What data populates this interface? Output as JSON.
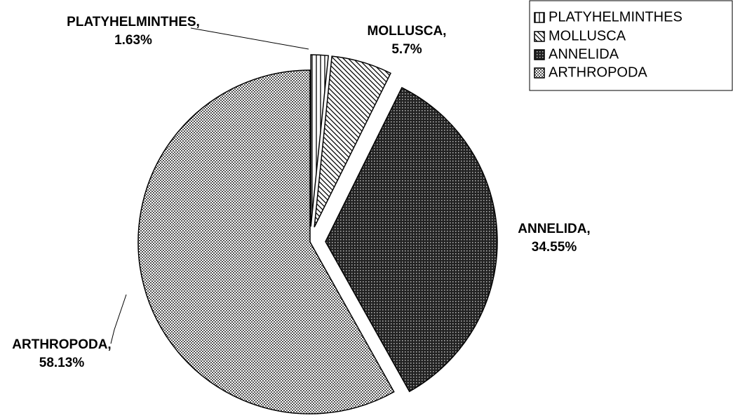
{
  "chart_data": {
    "type": "pie",
    "categories": [
      "PLATYHELMINTHES",
      "MOLLUSCA",
      "ANNELIDA",
      "ARTHROPODA"
    ],
    "values": [
      1.63,
      5.7,
      34.55,
      58.13
    ],
    "value_labels": [
      "PLATYHELMINTHES,\n1.63%",
      "MOLLUSCA,\n5.7%",
      "ANNELIDA,\n34.55%",
      "ARTHROPODA,\n58.13%"
    ],
    "legend": "top-right"
  }
}
